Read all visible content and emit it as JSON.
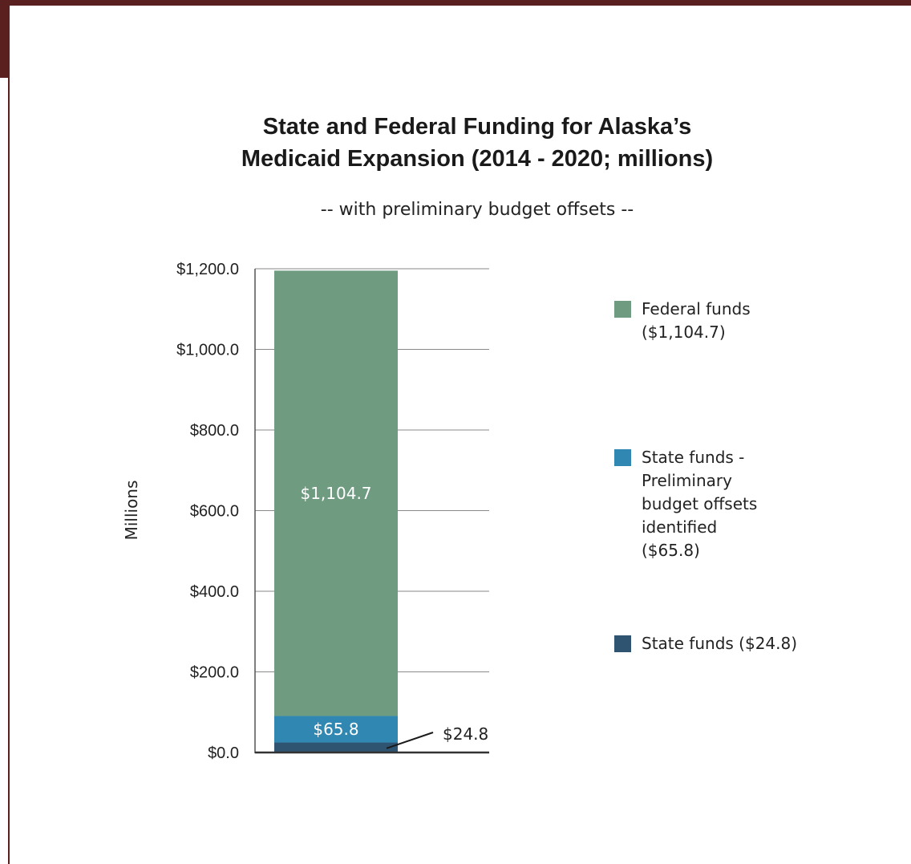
{
  "chart_data": {
    "type": "bar",
    "stacked": true,
    "title_lines": [
      "State and Federal Funding for Alaska’s",
      "Medicaid Expansion (2014 - 2020; millions)"
    ],
    "subtitle": "-- with preliminary budget offsets --",
    "ylabel": "Millions",
    "ylim": [
      0,
      1200
    ],
    "yticks": [
      0,
      200,
      400,
      600,
      800,
      1000,
      1200
    ],
    "ytick_labels": [
      "$0.0",
      "$200.0",
      "$400.0",
      "$600.0",
      "$800.0",
      "$1,000.0",
      "$1,200.0"
    ],
    "grid": true,
    "legend_position": "right",
    "series": [
      {
        "name": "State funds",
        "legend_lines": [
          "State funds ($24.8)"
        ],
        "value": 24.8,
        "label": "$24.8",
        "color": "#2e5472",
        "label_color": "#222222",
        "label_outside": true
      },
      {
        "name": "State funds - Preliminary budget offsets identified",
        "legend_lines": [
          "State funds -",
          "Preliminary",
          "budget offsets",
          "identified",
          "($65.8)"
        ],
        "value": 65.8,
        "label": "$65.8",
        "color": "#2f87b2",
        "label_color": "#ffffff",
        "label_outside": false
      },
      {
        "name": "Federal funds",
        "legend_lines": [
          "Federal funds",
          "($1,104.7)"
        ],
        "value": 1104.7,
        "label": "$1,104.7",
        "color": "#6f9c81",
        "label_color": "#ffffff",
        "label_outside": false
      }
    ],
    "legend_order": [
      2,
      1,
      0
    ]
  }
}
